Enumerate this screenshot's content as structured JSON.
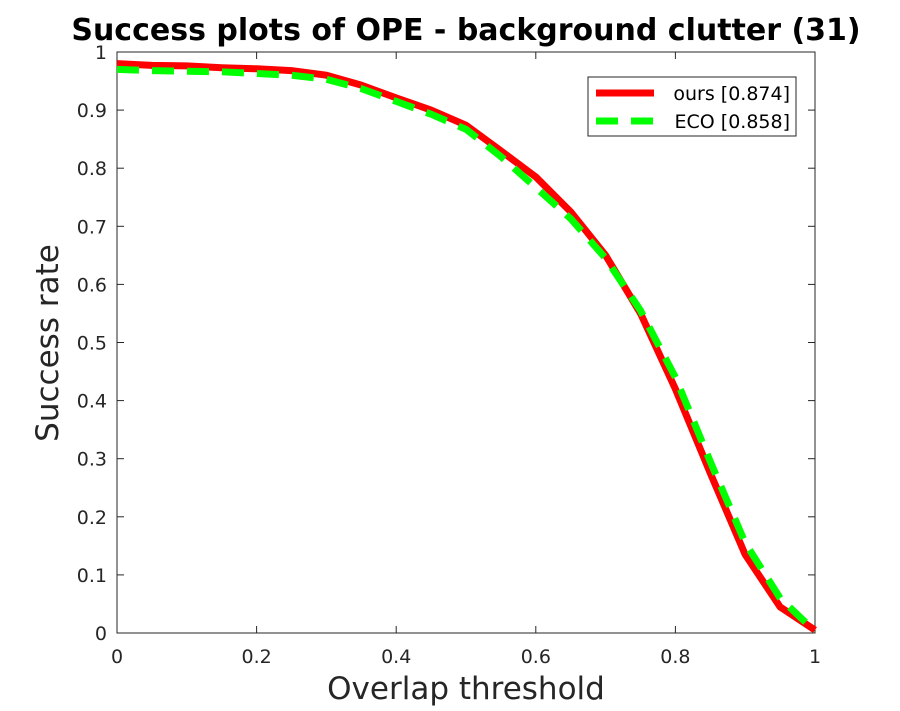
{
  "chart_data": {
    "type": "line",
    "title": "Success plots of OPE - background clutter (31)",
    "xlabel": "Overlap threshold",
    "ylabel": "Success rate",
    "xlim": [
      0,
      1
    ],
    "ylim": [
      0,
      1
    ],
    "xticks": [
      "0",
      "0.2",
      "0.4",
      "0.6",
      "0.8",
      "1"
    ],
    "yticks": [
      "0",
      "0.1",
      "0.2",
      "0.3",
      "0.4",
      "0.5",
      "0.6",
      "0.7",
      "0.8",
      "0.9",
      "1"
    ],
    "grid": false,
    "legend_position": "top-right",
    "x": [
      0,
      0.05,
      0.1,
      0.15,
      0.2,
      0.25,
      0.3,
      0.35,
      0.4,
      0.45,
      0.5,
      0.55,
      0.6,
      0.65,
      0.7,
      0.75,
      0.8,
      0.85,
      0.9,
      0.95,
      1.0
    ],
    "series": [
      {
        "name": "ours [0.874]",
        "color": "#ff0000",
        "style": "solid",
        "values": [
          0.98,
          0.977,
          0.976,
          0.973,
          0.971,
          0.968,
          0.96,
          0.943,
          0.921,
          0.9,
          0.874,
          0.83,
          0.785,
          0.725,
          0.65,
          0.55,
          0.42,
          0.275,
          0.135,
          0.045,
          0.005
        ]
      },
      {
        "name": "ECO [0.858]",
        "color": "#00ff00",
        "style": "dashed",
        "values": [
          0.97,
          0.968,
          0.967,
          0.966,
          0.963,
          0.96,
          0.953,
          0.937,
          0.915,
          0.893,
          0.867,
          0.82,
          0.767,
          0.713,
          0.645,
          0.555,
          0.44,
          0.295,
          0.155,
          0.06,
          0.003
        ]
      }
    ]
  }
}
